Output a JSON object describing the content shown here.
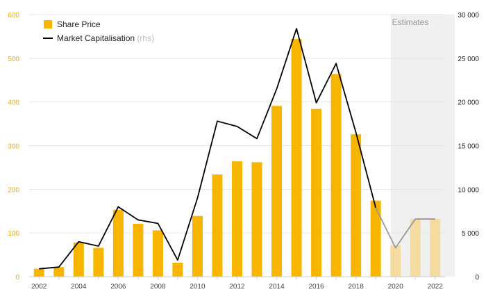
{
  "chart_data": {
    "type": "bar",
    "title": "",
    "xlabel": "",
    "ylabel": "",
    "categories": [
      "2002",
      "2003",
      "2004",
      "2005",
      "2006",
      "2007",
      "2008",
      "2009",
      "2010",
      "2011",
      "2012",
      "2013",
      "2014",
      "2015",
      "2016",
      "2017",
      "2018",
      "2019",
      "2020",
      "2021",
      "2022"
    ],
    "x_tick_labels": [
      "2002",
      "2004",
      "2006",
      "2008",
      "2010",
      "2012",
      "2014",
      "2016",
      "2018",
      "2020",
      "2022"
    ],
    "ylim_left": [
      0,
      600
    ],
    "ylim_right": [
      0,
      30000
    ],
    "y_ticks_left": [
      "0",
      "100",
      "200",
      "300",
      "400",
      "500",
      "600"
    ],
    "y_ticks_right": [
      "0",
      "5 000",
      "10 000",
      "15 000",
      "20 000",
      "25 000",
      "30 000"
    ],
    "grid": true,
    "legend_position": "top-left",
    "series": [
      {
        "name": "Share Price",
        "type": "bar",
        "axis": "left",
        "color": "#f7b500",
        "estimate_color": "#f5dba0",
        "values": [
          18,
          22,
          78,
          66,
          153,
          121,
          106,
          32,
          139,
          234,
          264,
          262,
          391,
          544,
          384,
          464,
          326,
          174,
          72,
          132,
          132
        ]
      },
      {
        "name": "Market Capitalisation",
        "name_suffix": "(rhs)",
        "type": "line",
        "axis": "right",
        "color": "#000000",
        "estimate_color": "#999999",
        "values": [
          900,
          1100,
          4000,
          3500,
          8000,
          6500,
          6100,
          1900,
          9000,
          17800,
          17200,
          15800,
          21500,
          28400,
          19900,
          24400,
          16500,
          7900,
          3300,
          6600,
          6600
        ]
      }
    ],
    "estimates": {
      "label": "Estimates",
      "from_category": "2019",
      "to_category": "2022",
      "band_color": "#f0f0f0"
    }
  }
}
